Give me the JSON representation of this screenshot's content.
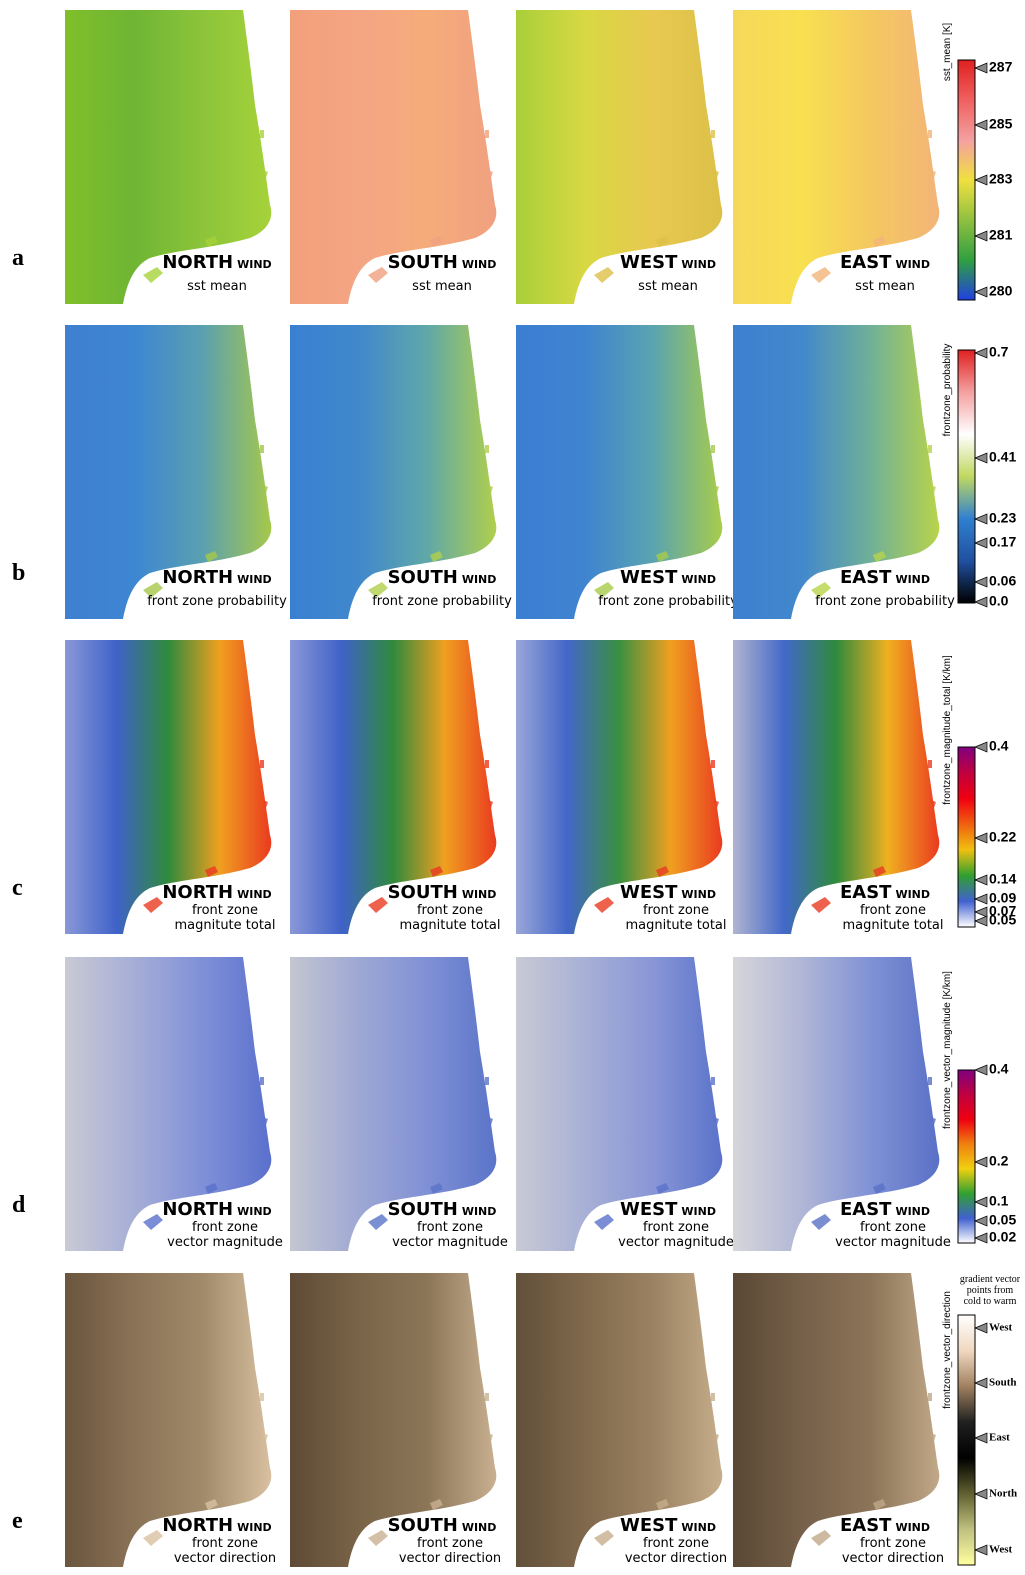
{
  "rows": [
    {
      "letter": "a",
      "panels": [
        {
          "wind": "NORTH",
          "wind_suffix": "WIND",
          "label_lines": [
            "sst mean"
          ]
        },
        {
          "wind": "SOUTH",
          "wind_suffix": "WIND",
          "label_lines": [
            "sst mean"
          ]
        },
        {
          "wind": "WEST",
          "wind_suffix": "WIND",
          "label_lines": [
            "sst mean"
          ]
        },
        {
          "wind": "EAST",
          "wind_suffix": "WIND",
          "label_lines": [
            "sst mean"
          ]
        }
      ],
      "colorbar": {
        "title": "sst_mean [K]",
        "ticks": [
          "287",
          "285",
          "283",
          "281",
          "280"
        ]
      }
    },
    {
      "letter": "b",
      "panels": [
        {
          "wind": "NORTH",
          "wind_suffix": "WIND",
          "label_lines": [
            "front zone probability"
          ]
        },
        {
          "wind": "SOUTH",
          "wind_suffix": "WIND",
          "label_lines": [
            "front zone probability"
          ]
        },
        {
          "wind": "WEST",
          "wind_suffix": "WIND",
          "label_lines": [
            "front zone probability"
          ]
        },
        {
          "wind": "EAST",
          "wind_suffix": "WIND",
          "label_lines": [
            "front zone probability"
          ]
        }
      ],
      "colorbar": {
        "title": "frontzone_probability",
        "ticks": [
          "0.7",
          "0.41",
          "0.23",
          "0.17",
          "0.06",
          "0.0"
        ]
      }
    },
    {
      "letter": "c",
      "panels": [
        {
          "wind": "NORTH",
          "wind_suffix": "WIND",
          "label_lines": [
            "front zone",
            "magnitute total"
          ]
        },
        {
          "wind": "SOUTH",
          "wind_suffix": "WIND",
          "label_lines": [
            "front zone",
            "magnitute total"
          ]
        },
        {
          "wind": "WEST",
          "wind_suffix": "WIND",
          "label_lines": [
            "front zone",
            "magnitute total"
          ]
        },
        {
          "wind": "EAST",
          "wind_suffix": "WIND",
          "label_lines": [
            "front zone",
            "magnitute total"
          ]
        }
      ],
      "colorbar": {
        "title": "frontzone_magnitude_total [K/km]",
        "ticks": [
          "0.4",
          "0.22",
          "0.14",
          "0.09",
          "0.07",
          "0.05"
        ]
      }
    },
    {
      "letter": "d",
      "panels": [
        {
          "wind": "NORTH",
          "wind_suffix": "WIND",
          "label_lines": [
            "front zone",
            "vector magnitude"
          ]
        },
        {
          "wind": "SOUTH",
          "wind_suffix": "WIND",
          "label_lines": [
            "front zone",
            "vector magnitude"
          ]
        },
        {
          "wind": "WEST",
          "wind_suffix": "WIND",
          "label_lines": [
            "front zone",
            "vector magnitude"
          ]
        },
        {
          "wind": "EAST",
          "wind_suffix": "WIND",
          "label_lines": [
            "front zone",
            "vector magnitude"
          ]
        }
      ],
      "colorbar": {
        "title": "frontzone_vector_magnitude [K/km]",
        "ticks": [
          "0.4",
          "0.2",
          "0.1",
          "0.05",
          "0.02"
        ]
      }
    },
    {
      "letter": "e",
      "panels": [
        {
          "wind": "NORTH",
          "wind_suffix": "WIND",
          "label_lines": [
            "front zone",
            "vector direction"
          ]
        },
        {
          "wind": "SOUTH",
          "wind_suffix": "WIND",
          "label_lines": [
            "front zone",
            "vector direction"
          ]
        },
        {
          "wind": "WEST",
          "wind_suffix": "WIND",
          "label_lines": [
            "front zone",
            "vector direction"
          ]
        },
        {
          "wind": "EAST",
          "wind_suffix": "WIND",
          "label_lines": [
            "front zone",
            "vector direction"
          ]
        }
      ],
      "colorbar": {
        "title": "frontzone_vector_direction",
        "note_lines": [
          "gradient vector",
          "points from",
          "cold to warm"
        ],
        "ticks": [
          "West",
          "South",
          "East",
          "North",
          "West"
        ]
      }
    }
  ]
}
